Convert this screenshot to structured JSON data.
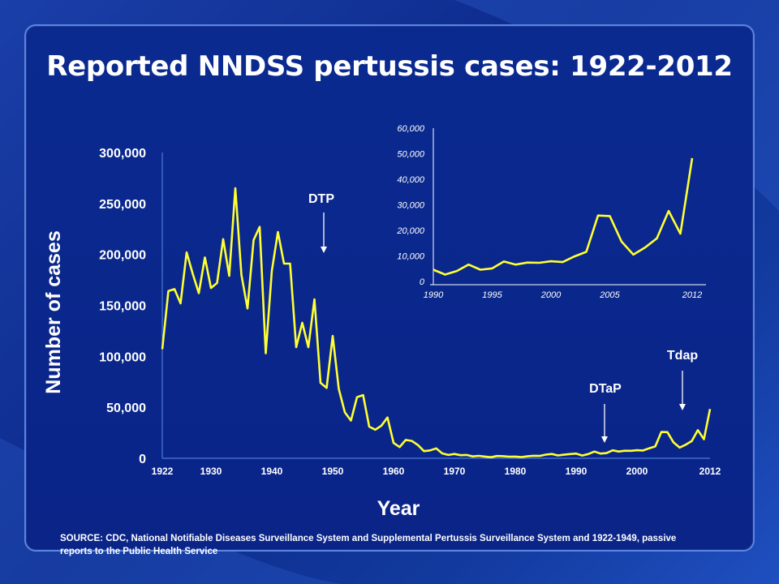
{
  "title": "Reported  NNDSS pertussis cases: 1922-2012",
  "source": "SOURCE:  CDC, National Notifiable Diseases  Surveillance System and Supplemental Pertussis  Surveillance System and 1922-1949,  passive reports to the Public Health Service",
  "colors": {
    "line": "#ffff33",
    "text": "#ffffff",
    "axis": "#4a7ad8"
  },
  "chart_data": [
    {
      "type": "line",
      "xlabel": "Year",
      "ylabel": "Number of cases",
      "xlim": [
        1922,
        2012
      ],
      "ylim": [
        0,
        300000
      ],
      "xticks": [
        1922,
        1930,
        1940,
        1950,
        1960,
        1970,
        1980,
        1990,
        2000,
        2012
      ],
      "yticks": [
        0,
        50000,
        100000,
        150000,
        200000,
        250000,
        300000
      ],
      "ytick_labels": [
        "0",
        "50,000",
        "100,000",
        "150,000",
        "200,000",
        "250,000",
        "300,000"
      ],
      "annotations": [
        {
          "label": "DTP",
          "year": 1949
        },
        {
          "label": "DTaP",
          "year": 1996
        },
        {
          "label": "Tdap",
          "year": 2007
        }
      ],
      "x": [
        1922,
        1923,
        1924,
        1925,
        1926,
        1927,
        1928,
        1929,
        1930,
        1931,
        1932,
        1933,
        1934,
        1935,
        1936,
        1937,
        1938,
        1939,
        1940,
        1941,
        1942,
        1943,
        1944,
        1945,
        1946,
        1947,
        1948,
        1949,
        1950,
        1951,
        1952,
        1953,
        1954,
        1955,
        1956,
        1957,
        1958,
        1959,
        1960,
        1961,
        1962,
        1963,
        1964,
        1965,
        1966,
        1967,
        1968,
        1969,
        1970,
        1971,
        1972,
        1973,
        1974,
        1975,
        1976,
        1977,
        1978,
        1979,
        1980,
        1981,
        1982,
        1983,
        1984,
        1985,
        1986,
        1987,
        1988,
        1989,
        1990,
        1991,
        1992,
        1993,
        1994,
        1995,
        1996,
        1997,
        1998,
        1999,
        2000,
        2001,
        2002,
        2003,
        2004,
        2005,
        2006,
        2007,
        2008,
        2009,
        2010,
        2011,
        2012
      ],
      "values": [
        107000,
        164000,
        166000,
        152000,
        202000,
        181000,
        162000,
        197000,
        167000,
        172000,
        215000,
        179000,
        265000,
        180000,
        147000,
        214000,
        227000,
        103000,
        184000,
        222000,
        191000,
        191000,
        109000,
        133000,
        109000,
        156000,
        74000,
        69000,
        120000,
        68000,
        45000,
        37000,
        60000,
        62000,
        31000,
        28000,
        32000,
        40000,
        15000,
        11000,
        18000,
        17000,
        13000,
        7000,
        7700,
        9700,
        4800,
        3300,
        4200,
        3000,
        3300,
        1800,
        2400,
        1700,
        1000,
        2200,
        2100,
        1600,
        1700,
        1200,
        1900,
        2500,
        2300,
        3600,
        4200,
        2800,
        3500,
        4100,
        4600,
        2700,
        4100,
        6600,
        4600,
        5100,
        7800,
        6600,
        7400,
        7300,
        7900,
        7600,
        9800,
        11600,
        25800,
        25600,
        15600,
        10500,
        13300,
        16900,
        27600,
        18700,
        48300
      ]
    },
    {
      "type": "line",
      "xlim": [
        1990,
        2012
      ],
      "ylim": [
        0,
        60000
      ],
      "xticks": [
        1990,
        1995,
        2000,
        2005,
        2012
      ],
      "yticks": [
        0,
        10000,
        20000,
        30000,
        40000,
        50000,
        60000
      ],
      "ytick_labels": [
        "0",
        "10,000",
        "20,000",
        "30,000",
        "40,000",
        "50,000",
        "60,000"
      ],
      "x": [
        1990,
        1991,
        1992,
        1993,
        1994,
        1995,
        1996,
        1997,
        1998,
        1999,
        2000,
        2001,
        2002,
        2003,
        2004,
        2005,
        2006,
        2007,
        2008,
        2009,
        2010,
        2011,
        2012
      ],
      "values": [
        4600,
        2700,
        4100,
        6600,
        4600,
        5100,
        7800,
        6600,
        7400,
        7300,
        7900,
        7600,
        9800,
        11600,
        25800,
        25600,
        15600,
        10500,
        13300,
        16900,
        27600,
        18700,
        48300
      ]
    }
  ]
}
